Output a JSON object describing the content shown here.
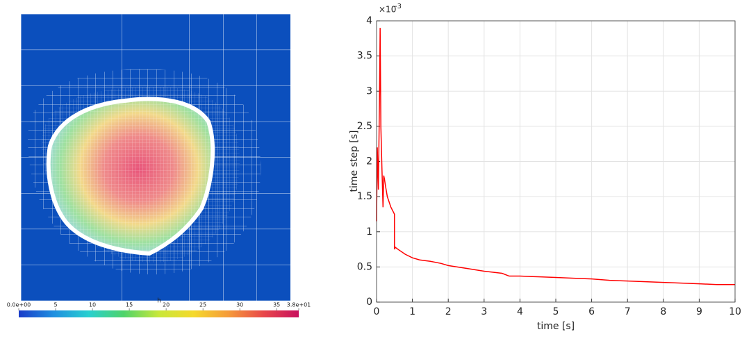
{
  "chart_data": [
    {
      "type": "colorbar",
      "label": "h",
      "xlim": [
        0,
        38
      ],
      "xticks": [
        {
          "value": 0,
          "label": "0.0e+00"
        },
        5,
        10,
        15,
        20,
        25,
        30,
        35,
        {
          "value": 38,
          "label": "3.8e+01"
        }
      ],
      "colormap": [
        "#1a3cc8",
        "#1f8fe0",
        "#28d0d0",
        "#4fd36a",
        "#c8e83a",
        "#f5d92b",
        "#f59a3a",
        "#e8474a",
        "#c8105e"
      ]
    },
    {
      "type": "line",
      "xlabel": "time [s]",
      "ylabel": "time step [s]",
      "y_multiplier": {
        "base": "×10",
        "exponent": "-3"
      },
      "xlim": [
        0,
        10
      ],
      "xticks": [
        0,
        1,
        2,
        3,
        4,
        5,
        6,
        7,
        8,
        9,
        10
      ],
      "ylim": [
        0,
        4
      ],
      "yticks": [
        0,
        0.5,
        1,
        1.5,
        2,
        2.5,
        3,
        3.5,
        4
      ],
      "grid": true,
      "series": [
        {
          "color": "#ff0000",
          "x": [
            0,
            0.02,
            0.05,
            0.08,
            0.1,
            0.12,
            0.15,
            0.18,
            0.2,
            0.22,
            0.25,
            0.3,
            0.4,
            0.5,
            0.5,
            0.52,
            0.6,
            0.8,
            1.0,
            1.2,
            1.5,
            1.8,
            2.0,
            2.5,
            3.0,
            3.5,
            3.7,
            4.0,
            4.5,
            5.0,
            5.5,
            6.0,
            6.5,
            7.0,
            7.5,
            8.0,
            8.5,
            9.0,
            9.5,
            10
          ],
          "values": [
            1.15,
            2.2,
            1.6,
            2.8,
            3.9,
            2.5,
            1.9,
            1.35,
            1.8,
            1.75,
            1.65,
            1.5,
            1.35,
            1.25,
            0.75,
            0.78,
            0.75,
            0.68,
            0.63,
            0.6,
            0.58,
            0.55,
            0.52,
            0.48,
            0.44,
            0.41,
            0.37,
            0.37,
            0.36,
            0.35,
            0.34,
            0.33,
            0.31,
            0.3,
            0.29,
            0.28,
            0.27,
            0.26,
            0.25,
            0.25
          ]
        }
      ]
    }
  ]
}
